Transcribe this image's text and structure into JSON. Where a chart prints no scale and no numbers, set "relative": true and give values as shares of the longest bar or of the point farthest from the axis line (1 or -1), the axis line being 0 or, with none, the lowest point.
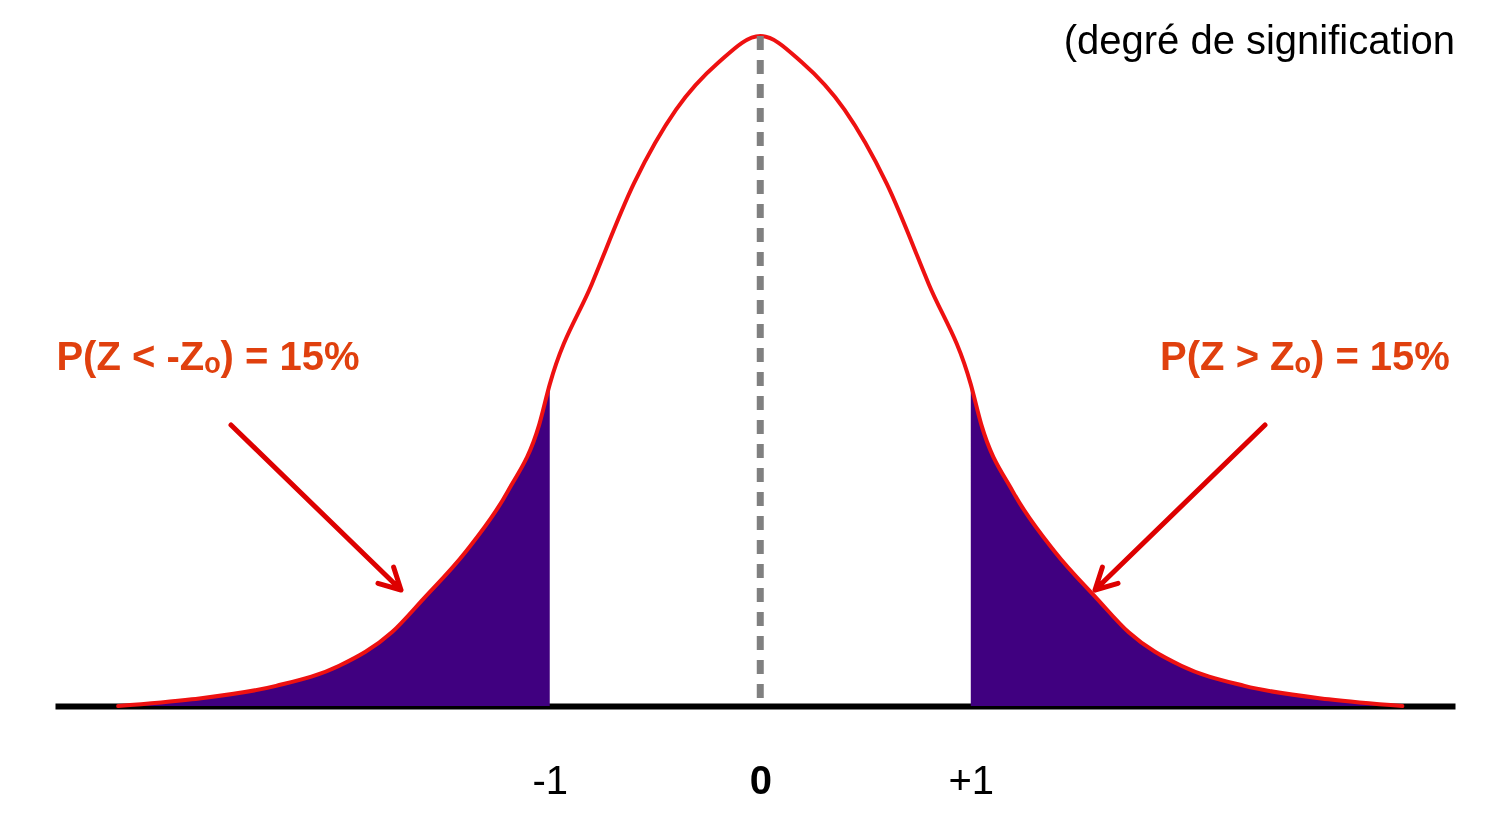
{
  "chart_data": {
    "type": "line",
    "relative": true,
    "xlim": [
      -3.35,
      3.3
    ],
    "xticks": [
      {
        "value": -1,
        "label": "-1"
      },
      {
        "value": 0,
        "label": "0"
      },
      {
        "value": 1,
        "label": "+1"
      }
    ],
    "grid": false,
    "marker": "none",
    "line_style": "solid",
    "series": [
      {
        "type": "area",
        "color": "#400080",
        "x": [
          -3.05,
          -2.7,
          -2.3,
          -2.0,
          -1.75,
          -1.6,
          -1.4,
          -1.2,
          -1.05,
          -1
        ],
        "values": [
          0,
          0.01,
          0.03,
          0.06,
          0.11,
          0.16,
          0.23,
          0.32,
          0.42,
          0.48
        ]
      },
      {
        "type": "area",
        "color": "#400080",
        "x": [
          1,
          1.05,
          1.2,
          1.4,
          1.6,
          1.75,
          2.0,
          2.3,
          2.7,
          3.05
        ],
        "values": [
          0.48,
          0.42,
          0.32,
          0.23,
          0.16,
          0.11,
          0.06,
          0.03,
          0.01,
          0
        ]
      },
      {
        "color": "#ee1111",
        "x": [
          -3.05,
          -2.7,
          -2.3,
          -2.0,
          -1.75,
          -1.6,
          -1.4,
          -1.2,
          -1.05,
          -1,
          -0.8,
          -0.6,
          -0.4,
          -0.2,
          0,
          0.2,
          0.4,
          0.6,
          0.8,
          1,
          1.05,
          1.2,
          1.4,
          1.6,
          1.75,
          2.0,
          2.3,
          2.7,
          3.05
        ],
        "values": [
          0,
          0.01,
          0.03,
          0.06,
          0.11,
          0.16,
          0.23,
          0.32,
          0.42,
          0.48,
          0.63,
          0.78,
          0.89,
          0.96,
          1,
          0.96,
          0.89,
          0.78,
          0.63,
          0.48,
          0.42,
          0.32,
          0.23,
          0.16,
          0.11,
          0.06,
          0.03,
          0.01,
          0
        ]
      }
    ],
    "ref_lines": [
      {
        "axis": "x",
        "value": 0,
        "color": "#808080",
        "line_style": "dashed"
      }
    ],
    "annotations": [
      "P(Z < -Zₒ) = 15%",
      "P(Z > Zₒ) = 15%",
      "(degré de signification"
    ]
  }
}
